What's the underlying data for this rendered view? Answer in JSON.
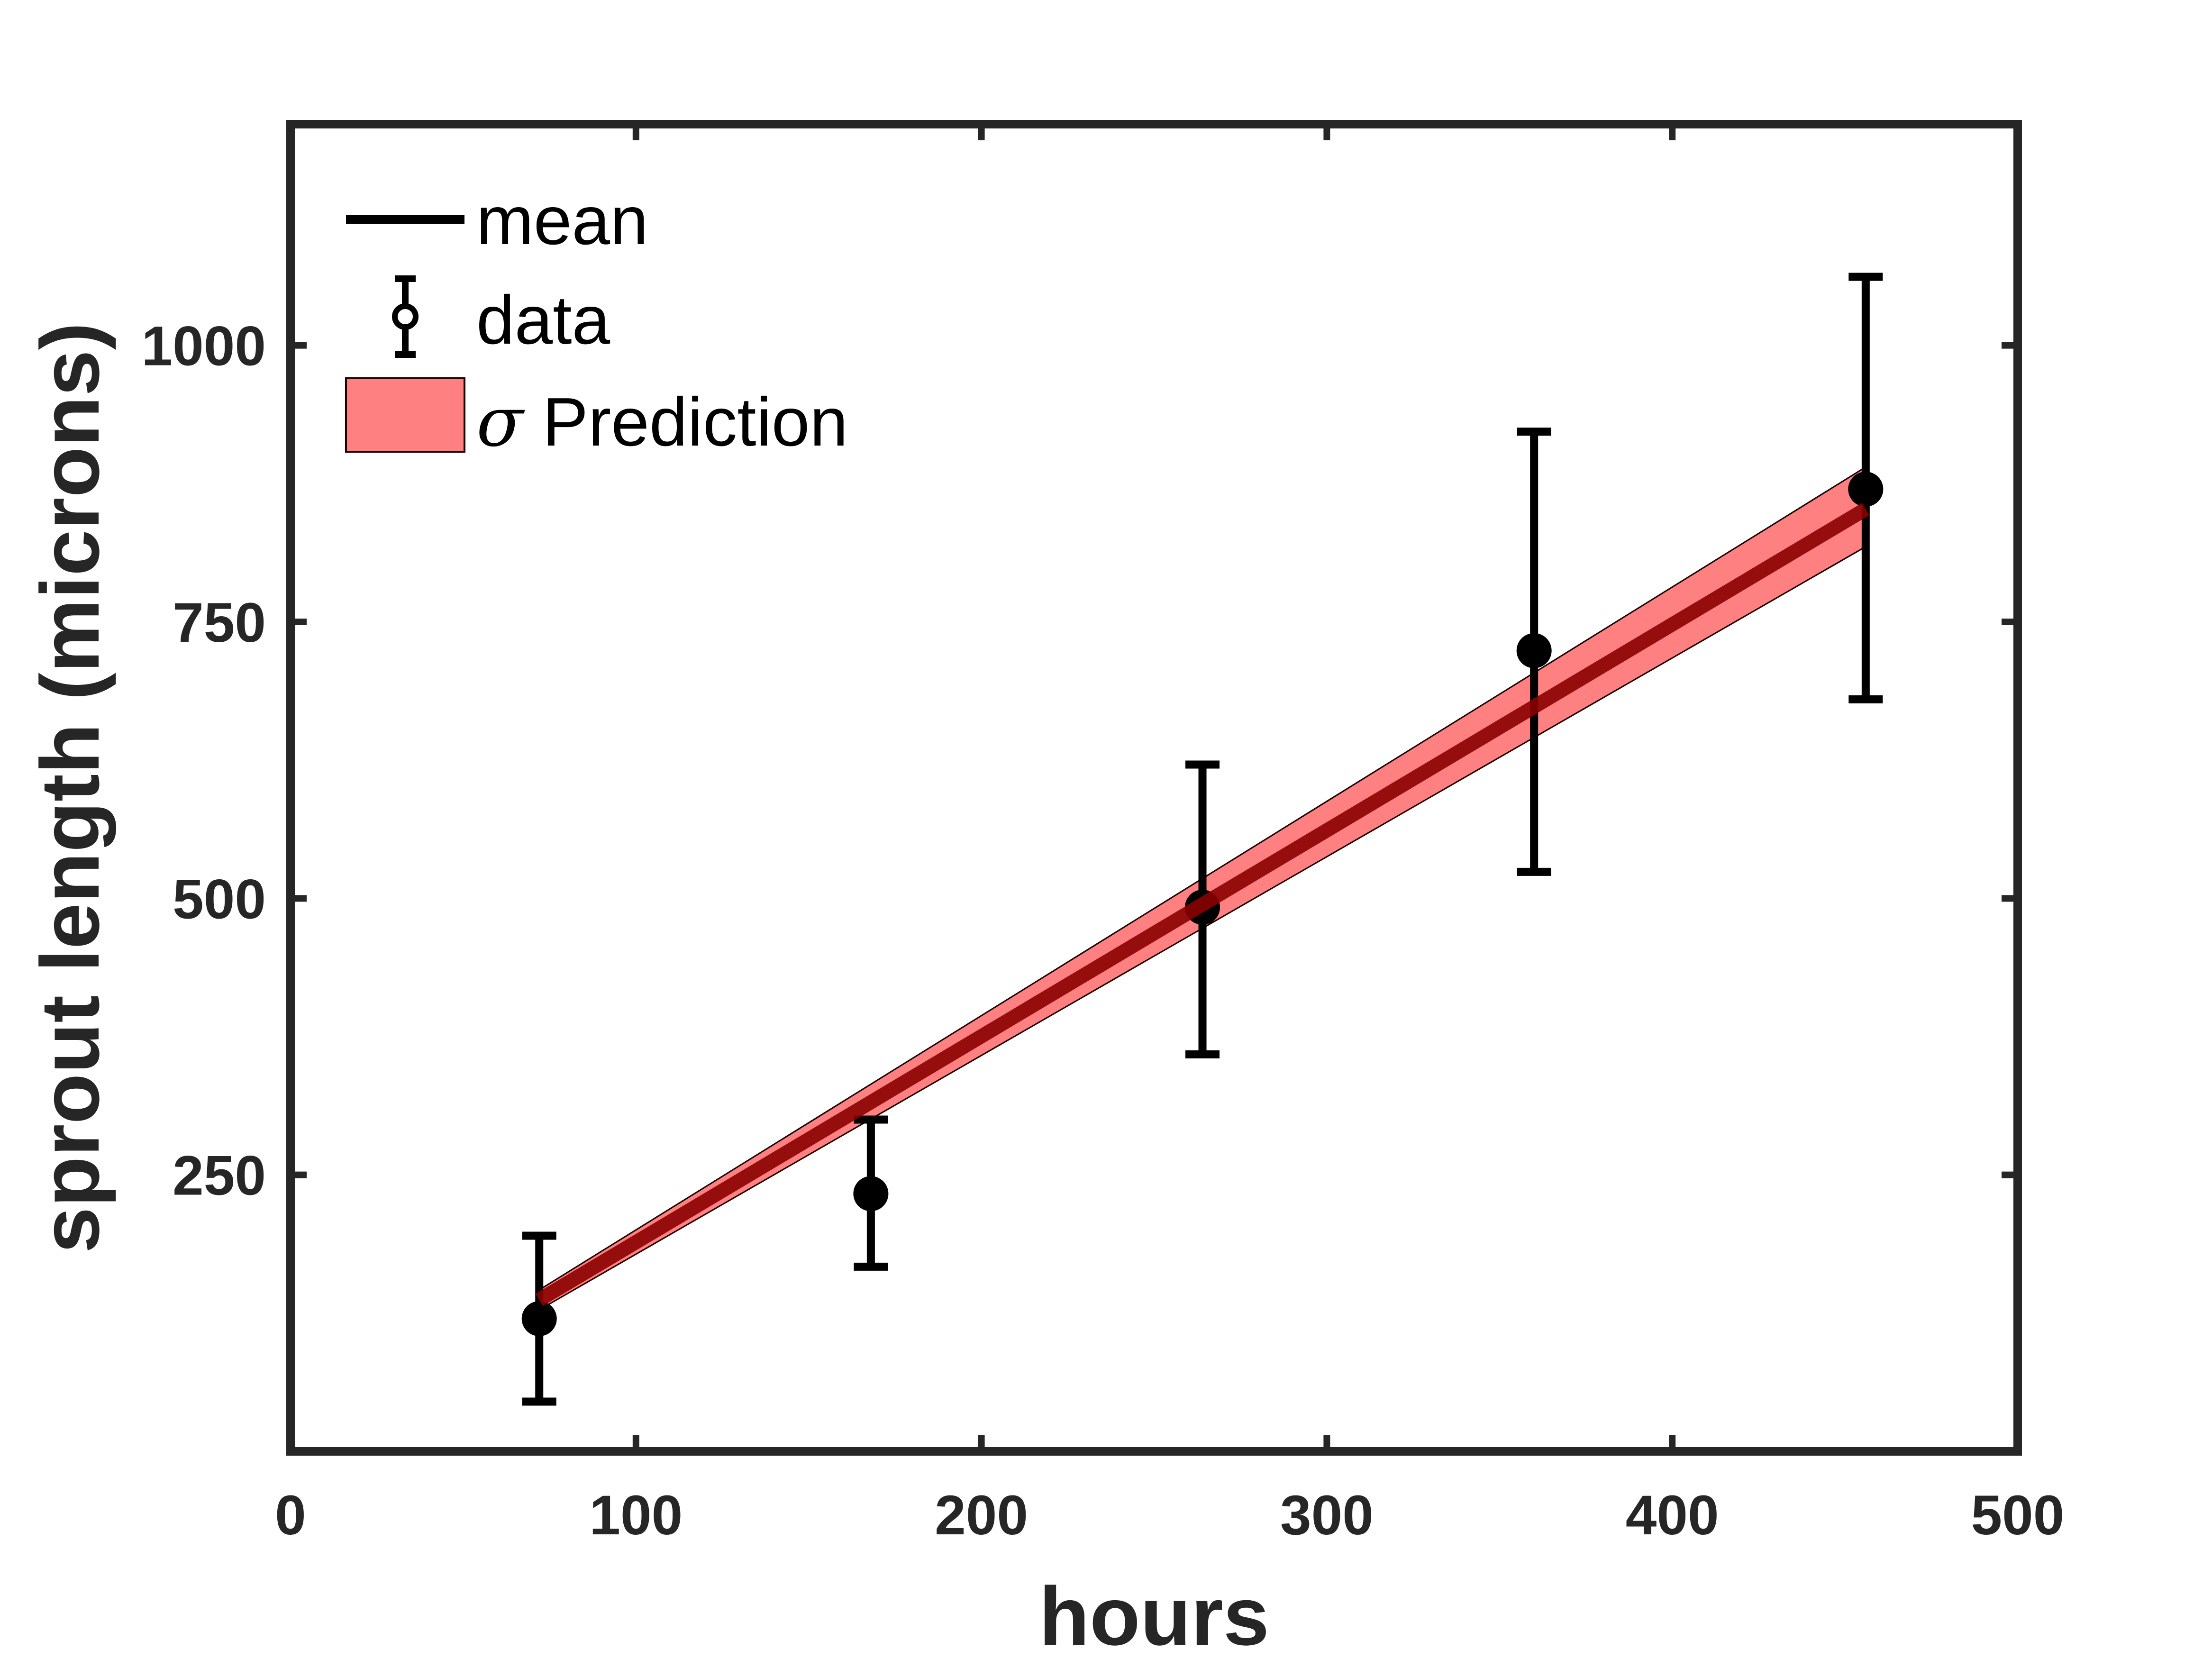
{
  "chart_data": {
    "type": "line",
    "xlabel": "hours",
    "ylabel": "sprout length (microns)",
    "xlim": [
      0,
      500
    ],
    "ylim": [
      0,
      1200
    ],
    "x_ticks": [
      0,
      100,
      200,
      300,
      400,
      500
    ],
    "x_tick_labels": [
      "0",
      "100",
      "200",
      "300",
      "400",
      "500"
    ],
    "y_ticks": [
      250,
      500,
      750,
      1000
    ],
    "y_tick_labels": [
      "250",
      "500",
      "750",
      "1000"
    ],
    "grid": false,
    "legend_position": "top-left",
    "legend": {
      "mean": "mean",
      "data": "data",
      "sigma_symbol": "σ",
      "prediction": " Prediction"
    },
    "colors": {
      "axis": "#262626",
      "mean_line": "#8b0000",
      "band_fill": "#ff8080",
      "band_edge": "#1a0000",
      "data": "#000000"
    },
    "series": [
      {
        "name": "mean",
        "kind": "line",
        "x": [
          72,
          456
        ],
        "y": [
          137,
          852
        ]
      },
      {
        "name": "σ Prediction",
        "kind": "band",
        "x": [
          72,
          456
        ],
        "lower": [
          128,
          818
        ],
        "upper": [
          146,
          890
        ]
      },
      {
        "name": "data",
        "kind": "errorbar",
        "x": [
          72,
          168,
          264,
          360,
          456
        ],
        "y": [
          120,
          233,
          492,
          724,
          870
        ],
        "err_low": [
          45,
          167,
          359,
          524,
          680
        ],
        "err_high": [
          195,
          300,
          621,
          922,
          1062
        ]
      }
    ]
  }
}
